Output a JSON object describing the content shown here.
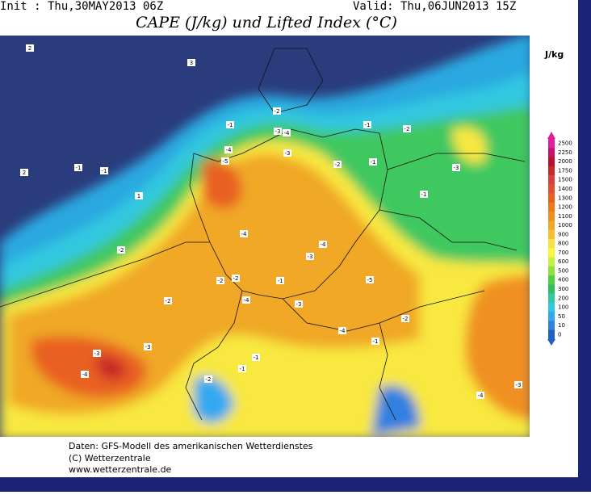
{
  "header": {
    "init": "Init : Thu,30MAY2013 06Z",
    "valid": "Valid: Thu,06JUN2013 15Z",
    "title": "CAPE (J/kg) und Lifted Index (°C)"
  },
  "colorbar": {
    "unit": "J/kg",
    "levels": [
      2500,
      2250,
      2000,
      1750,
      1500,
      1400,
      1300,
      1200,
      1100,
      1000,
      900,
      800,
      700,
      600,
      500,
      400,
      300,
      200,
      100,
      50,
      10,
      0
    ],
    "colors": [
      "#e0209a",
      "#c8106a",
      "#b81030",
      "#c82828",
      "#d84040",
      "#e05030",
      "#e86020",
      "#f07818",
      "#f09020",
      "#f0a828",
      "#f8c030",
      "#f8e040",
      "#f8f840",
      "#c8f040",
      "#90e040",
      "#50d040",
      "#30c060",
      "#30c8a0",
      "#30c8e0",
      "#30a8f0",
      "#3080e0",
      "#2060c0"
    ]
  },
  "map": {
    "contour_labels": [
      "2",
      "3",
      "2",
      "-1",
      "-1",
      "1",
      "-2",
      "-4",
      "-5",
      "-3",
      "-2",
      "-1",
      "-1",
      "-2",
      "-4",
      "-3",
      "-1",
      "-2",
      "-1",
      "-3",
      "-4",
      "-4",
      "-3",
      "-2",
      "-1",
      "-2",
      "-4",
      "-3",
      "-5",
      "-4",
      "-2",
      "-1",
      "-3",
      "-2",
      "-1",
      "-4",
      "-3",
      "-2",
      "-1",
      "-4",
      "-3"
    ]
  },
  "footer": {
    "lines": [
      "Daten: GFS-Modell des amerikanischen Wetterdienstes",
      "(C) Wetterzentrale",
      "www.wetterzentrale.de"
    ]
  }
}
